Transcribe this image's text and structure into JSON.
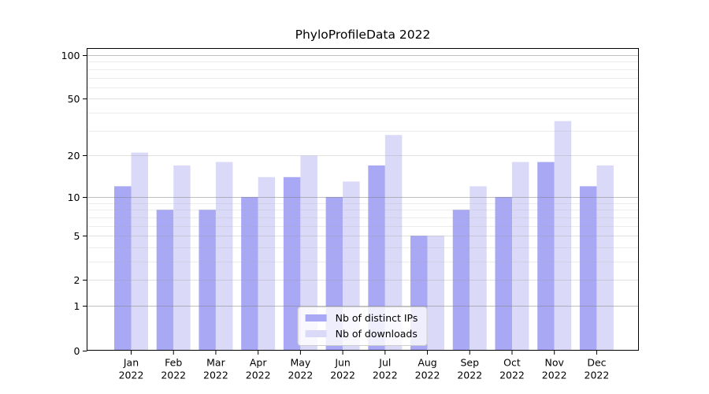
{
  "chart_data": {
    "type": "bar",
    "title": "PhyloProfileData 2022",
    "categories": [
      "Jan",
      "Feb",
      "Mar",
      "Apr",
      "May",
      "Jun",
      "Jul",
      "Aug",
      "Sep",
      "Oct",
      "Nov",
      "Dec"
    ],
    "category_sublabel": "2022",
    "series": [
      {
        "name": "Nb of distinct IPs",
        "color": "#a8a8f4",
        "values": [
          12,
          8,
          8,
          10,
          14,
          10,
          17,
          5,
          8,
          10,
          18,
          12
        ]
      },
      {
        "name": "Nb of downloads",
        "color": "#dadaf8",
        "values": [
          21,
          17,
          18,
          14,
          20,
          13,
          28,
          5,
          12,
          18,
          35,
          17
        ]
      }
    ],
    "xlabel": "",
    "ylabel": "",
    "yscale": "log1p",
    "ylim": [
      0,
      113
    ],
    "y_ticks": [
      0,
      1,
      2,
      5,
      10,
      20,
      50,
      100
    ],
    "grid": {
      "on": true,
      "major": [
        1,
        10,
        100
      ],
      "mid": [
        2,
        5,
        20,
        50
      ],
      "minor": [
        3,
        4,
        6,
        7,
        8,
        9,
        30,
        40,
        60,
        70,
        80,
        90
      ]
    },
    "legend_position": "lower center"
  }
}
